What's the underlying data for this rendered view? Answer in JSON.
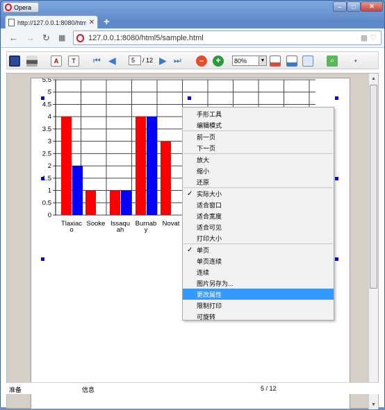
{
  "browser": {
    "app_name": "Opera",
    "tab_title": "http://127.0.0.1:8080/htm",
    "address": "127.0.0.1:8080/html5/sample.html"
  },
  "viewer": {
    "page_current": "5",
    "page_separator": "/",
    "page_total": "12",
    "zoom": "80%"
  },
  "status": {
    "left": "准备",
    "middle": "信息",
    "page": "5 / 12"
  },
  "chart_data": {
    "type": "bar",
    "categories": [
      "Tlaxiaco",
      "Sooke",
      "Issaquah",
      "Burnaby",
      "Novato"
    ],
    "category_labels": [
      [
        "Tlaxiac",
        "o"
      ],
      [
        "Sooke"
      ],
      [
        "Issaqu",
        "ah"
      ],
      [
        "Burnab",
        "y"
      ],
      [
        "Novat"
      ]
    ],
    "series": [
      {
        "color": "#ff0000",
        "values": [
          4,
          1,
          1,
          4,
          3
        ]
      },
      {
        "color": "#0000ff",
        "values": [
          2,
          0,
          1,
          4,
          null
        ]
      }
    ],
    "yticks": [
      "5.5",
      "5",
      "4.5",
      "4",
      "3.5",
      "3",
      "2.5",
      "2",
      "1.5",
      "1",
      "0.5",
      "0"
    ],
    "ylim": [
      0,
      5.5
    ],
    "grid": true
  },
  "context_menu": {
    "items": [
      {
        "label": "手形工具"
      },
      {
        "label": "编辑模式"
      },
      {
        "label": "前一页"
      },
      {
        "label": "下一页"
      },
      {
        "label": "放大"
      },
      {
        "label": "缩小"
      },
      {
        "label": "还原"
      },
      {
        "label": "实际大小",
        "checked": true
      },
      {
        "label": "适合窗口"
      },
      {
        "label": "适合宽度"
      },
      {
        "label": "适合可见"
      },
      {
        "label": "打印大小"
      },
      {
        "label": "单页",
        "checked": true
      },
      {
        "label": "单页连续"
      },
      {
        "label": "连续"
      },
      {
        "label": "图片另存为..."
      },
      {
        "label": "更改属性",
        "highlighted": true
      },
      {
        "label": "限制打印"
      },
      {
        "label": "可旋转"
      }
    ],
    "check_glyph": "✓"
  }
}
